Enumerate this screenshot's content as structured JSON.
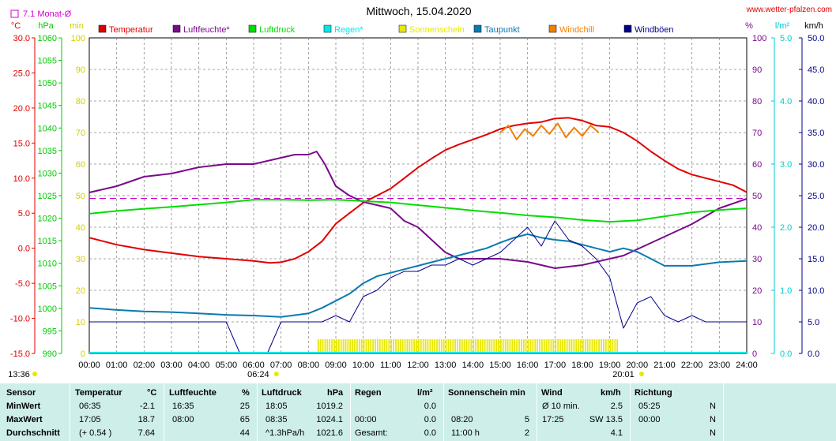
{
  "chart_data": {
    "type": "line",
    "title": "Mittwoch, 15.04.2020",
    "watermark": "www.wetter-pfalzen.com",
    "monthly_avg_label": "7.1 Monat-Ø",
    "monthly_avg_value": 7.1,
    "x_ticks": [
      "00:00",
      "01:00",
      "02:00",
      "03:00",
      "04:00",
      "05:00",
      "06:00",
      "07:00",
      "08:00",
      "09:00",
      "10:00",
      "11:00",
      "12:00",
      "13:00",
      "14:00",
      "15:00",
      "16:00",
      "17:00",
      "18:00",
      "19:00",
      "20:00",
      "21:00",
      "22:00",
      "23:00",
      "24:00"
    ],
    "sunrise": "06:24",
    "sunset": "20:01",
    "time_marker": "13:36",
    "legend": [
      {
        "label": "Temperatur",
        "color": "#e00000"
      },
      {
        "label": "Luftfeuchte*",
        "color": "#7a0a8a"
      },
      {
        "label": "Luftdruck",
        "color": "#00dd00"
      },
      {
        "label": "Regen*",
        "color": "#00e8e8"
      },
      {
        "label": "Sonnenschein",
        "color": "#e8e800"
      },
      {
        "label": "Taupunkt",
        "color": "#0a7ab0"
      },
      {
        "label": "Windchill",
        "color": "#f08000"
      },
      {
        "label": "Windböen",
        "color": "#00008b"
      }
    ],
    "axes": {
      "temp": {
        "unit": "°C",
        "color": "#e00000",
        "ticks": [
          "30.0",
          "25.0",
          "20.0",
          "15.0",
          "10.0",
          "5.0",
          "0.0",
          "-5.0",
          "-10.0",
          "-15.0"
        ],
        "range": [
          -15,
          30
        ]
      },
      "pressure": {
        "unit": "hPa",
        "color": "#00cc00",
        "ticks": [
          "1060",
          "1055",
          "1050",
          "1045",
          "1040",
          "1035",
          "1030",
          "1025",
          "1020",
          "1015",
          "1010",
          "1005",
          "1000",
          "995",
          "990"
        ],
        "range": [
          990,
          1060
        ]
      },
      "sunshine": {
        "unit": "min",
        "color": "#d0d000",
        "ticks": [
          "100",
          "90",
          "80",
          "70",
          "60",
          "50",
          "40",
          "30",
          "20",
          "10",
          "0"
        ],
        "range": [
          0,
          100
        ]
      },
      "humidity": {
        "unit": "%",
        "color": "#7a0a8a",
        "ticks": [
          "100",
          "90",
          "80",
          "70",
          "60",
          "50",
          "40",
          "30",
          "20",
          "10",
          "0"
        ],
        "range": [
          0,
          100
        ]
      },
      "rain": {
        "unit": "l/m²",
        "color": "#00cccc",
        "ticks": [
          "5.0",
          "4.0",
          "3.0",
          "2.0",
          "1.0",
          "0.0"
        ],
        "range": [
          0,
          5
        ]
      },
      "wind": {
        "unit": "km/h",
        "color": "#00008b",
        "ticks": [
          "50.0",
          "45.0",
          "40.0",
          "35.0",
          "30.0",
          "25.0",
          "20.0",
          "15.0",
          "10.0",
          "5.0",
          "0.0"
        ],
        "range": [
          0,
          50
        ]
      }
    },
    "series": [
      {
        "name": "Temperatur",
        "color": "#e00000",
        "axis": "temp",
        "x": [
          0,
          1,
          2,
          3,
          4,
          5,
          6,
          6.6,
          7,
          7.5,
          8,
          8.5,
          9,
          9.5,
          10,
          10.5,
          11,
          11.5,
          12,
          12.5,
          13,
          13.5,
          14,
          14.5,
          15,
          15.5,
          16,
          16.5,
          17,
          17.5,
          18,
          18.5,
          19,
          19.5,
          20,
          20.5,
          21,
          21.5,
          22,
          22.5,
          23,
          23.5,
          24
        ],
        "y": [
          1.5,
          0.5,
          -0.2,
          -0.7,
          -1.2,
          -1.5,
          -1.8,
          -2.1,
          -2.0,
          -1.5,
          -0.5,
          1.0,
          3.5,
          5.0,
          6.5,
          7.5,
          8.5,
          10.0,
          11.5,
          12.8,
          14.0,
          14.8,
          15.5,
          16.2,
          17.0,
          17.5,
          17.8,
          18.0,
          18.5,
          18.6,
          18.2,
          17.5,
          17.3,
          16.5,
          15.3,
          13.8,
          12.5,
          11.3,
          10.5,
          10.0,
          9.5,
          9.0,
          8.0
        ]
      },
      {
        "name": "Luftfeuchte*",
        "color": "#7a0a8a",
        "axis": "humidity",
        "x": [
          0,
          1,
          2,
          3,
          4,
          5,
          6,
          7,
          7.5,
          8,
          8.3,
          8.6,
          9,
          9.5,
          10,
          10.5,
          11,
          11.5,
          12,
          12.5,
          13,
          13.5,
          14,
          15,
          16,
          17,
          18,
          19,
          19.5,
          20,
          21,
          22,
          23,
          24
        ],
        "y": [
          51,
          53,
          56,
          57,
          59,
          60,
          60,
          62,
          63,
          63,
          64,
          60,
          53,
          50,
          48,
          47,
          46,
          42,
          40,
          36,
          32,
          30,
          30,
          30,
          29,
          27,
          28,
          30,
          31,
          33,
          37,
          41,
          46,
          49
        ]
      },
      {
        "name": "Luftdruck",
        "color": "#00dd00",
        "axis": "pressure",
        "x": [
          0,
          1,
          2,
          3,
          4,
          5,
          6,
          7,
          8,
          9,
          10,
          11,
          12,
          13,
          14,
          15,
          16,
          17,
          18,
          19,
          20,
          21,
          22,
          23,
          24
        ],
        "y": [
          1021,
          1021.6,
          1022.1,
          1022.5,
          1023.0,
          1023.5,
          1024.1,
          1024.1,
          1024.0,
          1024.1,
          1023.8,
          1023.5,
          1022.9,
          1022.3,
          1021.7,
          1021.2,
          1020.6,
          1020.2,
          1019.6,
          1019.2,
          1019.5,
          1020.4,
          1021.3,
          1021.8,
          1022.2
        ]
      },
      {
        "name": "Taupunkt",
        "color": "#0a7ab0",
        "axis": "temp",
        "x": [
          0,
          1,
          2,
          3,
          4,
          5,
          6,
          7,
          8,
          8.5,
          9,
          9.5,
          10,
          10.5,
          11,
          11.5,
          12,
          12.5,
          13,
          13.5,
          14,
          14.5,
          15,
          15.5,
          16,
          16.5,
          17,
          17.5,
          18,
          18.5,
          19,
          19.5,
          20,
          20.5,
          21,
          22,
          23,
          24
        ],
        "y": [
          -8.5,
          -8.8,
          -9.0,
          -9.1,
          -9.3,
          -9.5,
          -9.6,
          -9.8,
          -9.3,
          -8.5,
          -7.5,
          -6.5,
          -5.0,
          -4.0,
          -3.5,
          -3.0,
          -2.5,
          -2.0,
          -1.5,
          -1.0,
          -0.5,
          0.0,
          0.8,
          1.5,
          2.0,
          1.5,
          1.2,
          1.0,
          0.5,
          0.0,
          -0.5,
          0.0,
          -0.5,
          -1.5,
          -2.5,
          -2.5,
          -2.0,
          -1.8
        ]
      },
      {
        "name": "Windchill",
        "color": "#f08000",
        "axis": "temp",
        "x": [
          15,
          15.3,
          15.6,
          15.9,
          16.2,
          16.5,
          16.8,
          17.1,
          17.4,
          17.7,
          18,
          18.3,
          18.6
        ],
        "y": [
          16.5,
          17.5,
          15.5,
          17.0,
          16.0,
          17.5,
          16.3,
          17.8,
          15.8,
          17.2,
          16.0,
          17.5,
          16.5
        ]
      },
      {
        "name": "Windböen",
        "color": "#00008b",
        "axis": "wind",
        "x": [
          0,
          0.5,
          1,
          1.5,
          2,
          2.5,
          3,
          3.5,
          4,
          4.5,
          5,
          5.5,
          6,
          6.5,
          7,
          7.5,
          8,
          8.5,
          9,
          9.5,
          10,
          10.5,
          11,
          11.5,
          12,
          12.5,
          13,
          13.5,
          14,
          14.5,
          15,
          15.5,
          16,
          16.5,
          17,
          17.5,
          18,
          18.5,
          19,
          19.5,
          20,
          20.5,
          21,
          21.5,
          22,
          22.5,
          23,
          23.5,
          24
        ],
        "y": [
          5,
          5,
          5,
          5,
          5,
          5,
          5,
          5,
          5,
          5,
          5,
          0,
          0,
          0,
          5,
          5,
          5,
          5,
          6,
          5,
          9,
          10,
          12,
          13,
          13,
          14,
          14,
          15,
          14,
          15,
          16,
          18,
          20,
          17,
          21,
          18,
          17,
          15,
          12,
          4,
          8,
          9,
          6,
          5,
          6,
          5,
          5,
          5,
          5
        ]
      }
    ],
    "sunshine_bar_range": [
      "08:20",
      "19:20"
    ],
    "monthly_avg_line_temp": 7.1
  },
  "table": {
    "headers": {
      "sensor": "Sensor",
      "temp": "Temperatur",
      "temp_unit": "°C",
      "hum": "Luftfeuchte",
      "hum_unit": "%",
      "press": "Luftdruck",
      "press_unit": "hPa",
      "rain": "Regen",
      "rain_unit": "l/m²",
      "sun": "Sonnenschein min",
      "wind": "Wind",
      "wind_unit": "km/h",
      "dir": "Richtung"
    },
    "rows": [
      {
        "label": "MinWert",
        "temp_time": "06:35",
        "temp_val": "-2.1",
        "hum_time": "16:35",
        "hum_val": "25",
        "press_time": "18:05",
        "press_val": "1019.2",
        "rain_time": "",
        "rain_val": "0.0",
        "sun_time": "",
        "sun_val": "",
        "wind_time": "Ø 10 min.",
        "wind_val": "2.5",
        "dir_time": "05:25",
        "dir_val": "N"
      },
      {
        "label": "MaxWert",
        "temp_time": "17:05",
        "temp_val": "18.7",
        "hum_time": "08:00",
        "hum_val": "65",
        "press_time": "08:35",
        "press_val": "1024.1",
        "rain_time": "00:00",
        "rain_val": "0.0",
        "sun_time": "08:20",
        "sun_val": "5",
        "wind_time": "17:25",
        "wind_val": "SW 13.5",
        "dir_time": "00:00",
        "dir_val": "N"
      },
      {
        "label": "Durchschnitt",
        "temp_time": "(+ 0.54 )",
        "temp_val": "7.64",
        "hum_time": "",
        "hum_val": "44",
        "press_time": "^1.3hPa/h",
        "press_val": "1021.6",
        "rain_time": "Gesamt:",
        "rain_val": "0.0",
        "sun_time": "11:00 h",
        "sun_val": "2",
        "wind_time": "",
        "wind_val": "4.1",
        "dir_time": "",
        "dir_val": "N"
      }
    ]
  }
}
